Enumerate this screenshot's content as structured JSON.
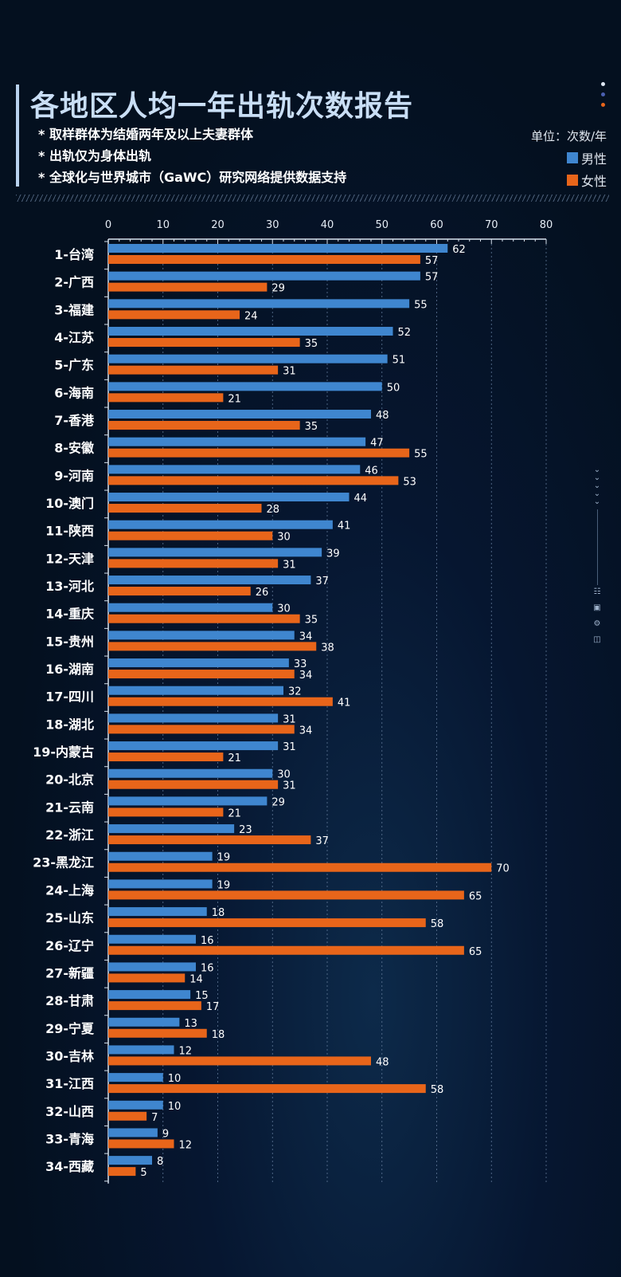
{
  "title": "各地区人均一年出轨次数报告",
  "notes": [
    "* 取样群体为结婚两年及以上夫妻群体",
    "* 出轨仅为身体出轨",
    "* 全球化与世界城市（GaWC）研究网络提供数据支持"
  ],
  "unit": "单位：次数/年",
  "colors": {
    "male": "#3f86cf",
    "female": "#e8651a"
  },
  "chart_data": {
    "type": "bar",
    "orientation": "horizontal",
    "title": "各地区人均一年出轨次数报告",
    "xlim": [
      0,
      80
    ],
    "xticks": [
      "0",
      "10",
      "20",
      "30",
      "40",
      "50",
      "60",
      "70",
      "80"
    ],
    "legend": "top-right",
    "categories": [
      "1-台湾",
      "2-广西",
      "3-福建",
      "4-江苏",
      "5-广东",
      "6-海南",
      "7-香港",
      "8-安徽",
      "9-河南",
      "10-澳门",
      "11-陕西",
      "12-天津",
      "13-河北",
      "14-重庆",
      "15-贵州",
      "16-湖南",
      "17-四川",
      "18-湖北",
      "19-内蒙古",
      "20-北京",
      "21-云南",
      "22-浙江",
      "23-黑龙江",
      "24-上海",
      "25-山东",
      "26-辽宁",
      "27-新疆",
      "28-甘肃",
      "29-宁夏",
      "30-吉林",
      "31-江西",
      "32-山西",
      "33-青海",
      "34-西藏"
    ],
    "series": [
      {
        "name": "男性",
        "values": [
          62,
          57,
          55,
          52,
          51,
          50,
          48,
          47,
          46,
          44,
          41,
          39,
          37,
          30,
          34,
          33,
          32,
          31,
          31,
          30,
          29,
          23,
          19,
          19,
          18,
          16,
          16,
          15,
          13,
          12,
          10,
          10,
          9,
          8
        ]
      },
      {
        "name": "女性",
        "values": [
          57,
          29,
          24,
          35,
          31,
          21,
          35,
          55,
          53,
          28,
          30,
          31,
          26,
          35,
          38,
          34,
          41,
          34,
          21,
          31,
          21,
          37,
          70,
          65,
          58,
          65,
          14,
          17,
          18,
          48,
          58,
          7,
          12,
          5
        ]
      }
    ]
  }
}
